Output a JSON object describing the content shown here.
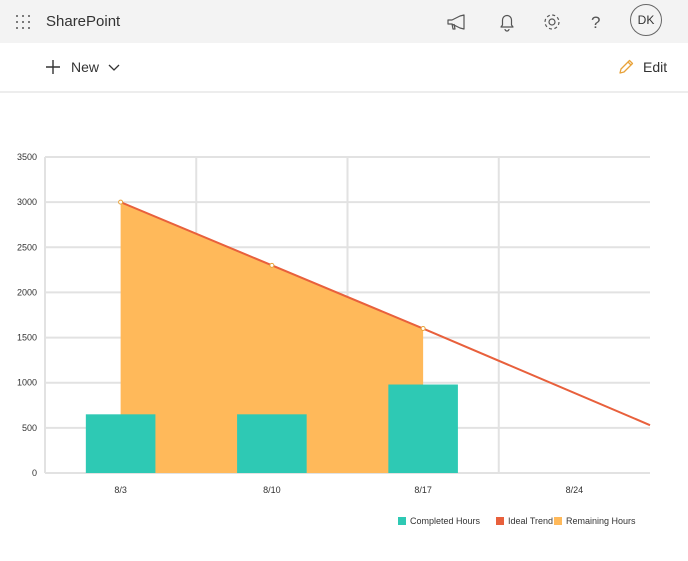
{
  "app": {
    "brand": "SharePoint",
    "user_initials": "DK"
  },
  "suitebar_icons": [
    "waffle-icon",
    "megaphone-icon",
    "bell-icon",
    "gear-icon",
    "help-icon"
  ],
  "help_glyph": "?",
  "commandbar": {
    "new_label": "New",
    "edit_label": "Edit"
  },
  "colors": {
    "completed": "#2ec9b4",
    "ideal": "#e8603c",
    "remaining": "#ffb95a",
    "edit_icon": "#e8a23a"
  },
  "chart_data": {
    "type": "bar",
    "categories": [
      "8/3",
      "8/10",
      "8/17",
      "8/24"
    ],
    "ylim": [
      0,
      3500
    ],
    "yticks": [
      0,
      500,
      1000,
      1500,
      2000,
      2500,
      3000,
      3500
    ],
    "series": [
      {
        "name": "Completed Hours",
        "type": "bar",
        "values": [
          650,
          650,
          980,
          0
        ]
      },
      {
        "name": "Ideal Trend",
        "type": "line",
        "values": [
          3000,
          2300,
          1600,
          530
        ]
      },
      {
        "name": "Remaining Hours",
        "type": "area",
        "values": [
          3000,
          2300,
          1600,
          null
        ]
      }
    ],
    "legend_position": "bottom-right",
    "grid": true
  }
}
